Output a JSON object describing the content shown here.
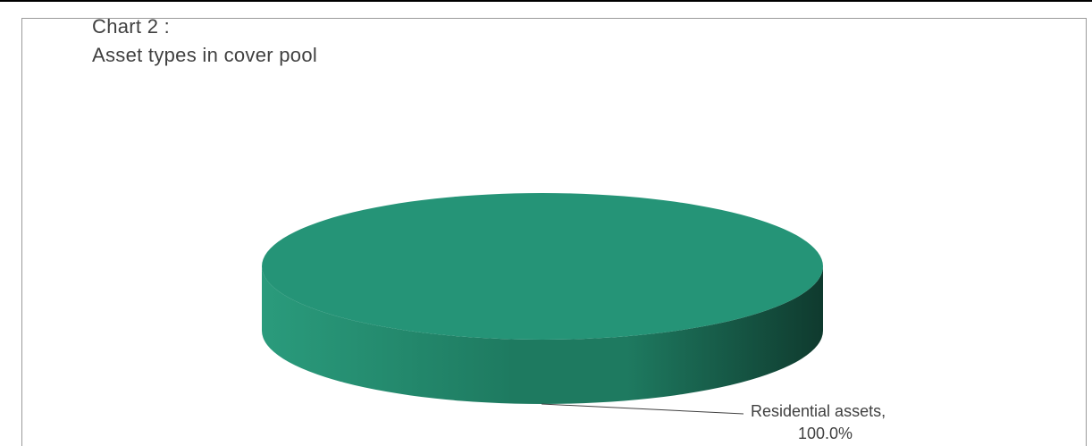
{
  "chart_data": {
    "type": "pie",
    "style": "3d",
    "title_line1": "Chart 2 :",
    "title_line2": "Asset types in cover pool",
    "slices": [
      {
        "label": "Residential assets",
        "value": 100.0,
        "value_text": "100.0%",
        "label_line1": "Residential assets,",
        "label_line2": "100.0%",
        "color": "#259477"
      }
    ],
    "colors": {
      "top": "#259477",
      "side_light": "#2a9b7c",
      "side_mid": "#1e7a60",
      "side_dark": "#0f3a2e"
    }
  }
}
